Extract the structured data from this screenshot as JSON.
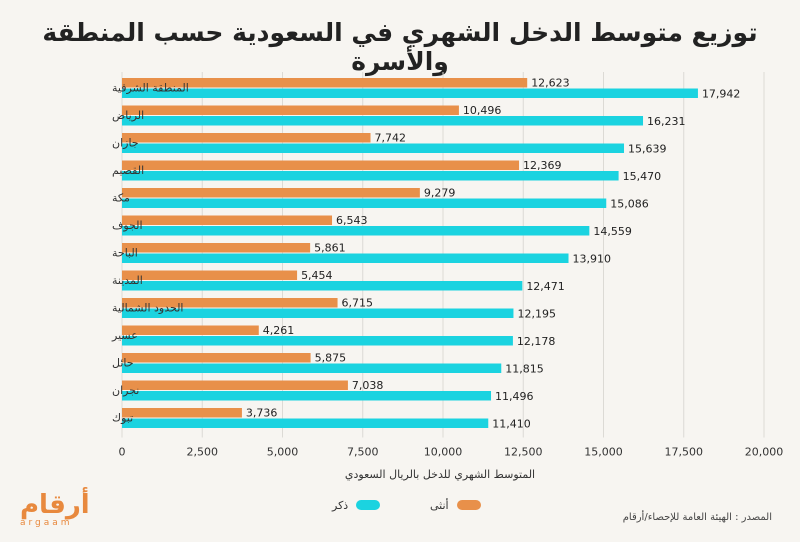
{
  "title": "توزيع متوسط الدخل الشهري في السعودية حسب المنطقة والأسرة",
  "axis_title": "المتوسط الشهري للدخل بالريال السعودي",
  "source": "المصدر : الهيئة العامة للإحصاء/أرقام",
  "logo": {
    "main": "أرقام",
    "sub": "argaam"
  },
  "colors": {
    "female": "#e8904a",
    "male": "#1bd3e0",
    "background": "#f7f5f1"
  },
  "legend": {
    "female": "أنثى",
    "male": "ذكر"
  },
  "chart_data": {
    "type": "bar",
    "orientation": "horizontal",
    "categories": [
      "المنطقة الشرقية",
      "الرياض",
      "جازان",
      "القصيم",
      "مكة",
      "الجوف",
      "الباحة",
      "المدينة",
      "الحدود الشمالية",
      "عسير",
      "حائل",
      "نجران",
      "تبوك"
    ],
    "series": [
      {
        "name": "أنثى",
        "values": [
          12623,
          10496,
          7742,
          12369,
          9279,
          6543,
          5861,
          5454,
          6715,
          4261,
          5875,
          7038,
          3736
        ]
      },
      {
        "name": "ذكر",
        "values": [
          17942,
          16231,
          15639,
          15470,
          15086,
          14559,
          13910,
          12471,
          12195,
          12178,
          11815,
          11496,
          11410
        ]
      }
    ],
    "xlim": [
      0,
      20000
    ],
    "ticks": [
      0,
      2500,
      5000,
      7500,
      10000,
      12500,
      15000,
      17500,
      20000
    ],
    "tick_labels": [
      "0",
      "2,500",
      "5,000",
      "7,500",
      "10,000",
      "12,500",
      "15,000",
      "17,500",
      "20,000"
    ],
    "grid": true,
    "legend_position": "bottom"
  }
}
